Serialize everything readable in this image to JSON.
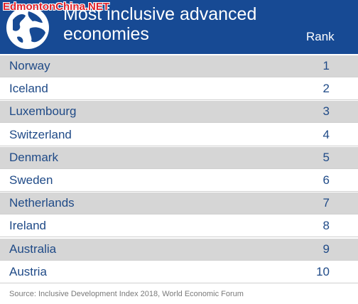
{
  "header": {
    "title": "Most inclusive advanced economies",
    "rank_label": "Rank",
    "watermark": "EdmontonChina.NET",
    "icon": "globe-icon"
  },
  "colors": {
    "header_bg": "#174a94",
    "row_shaded": "#d6d6d6",
    "text": "#1f4a87"
  },
  "rows": [
    {
      "country": "Norway",
      "rank": "1"
    },
    {
      "country": "Iceland",
      "rank": "2"
    },
    {
      "country": "Luxembourg",
      "rank": "3"
    },
    {
      "country": "Switzerland",
      "rank": "4"
    },
    {
      "country": "Denmark",
      "rank": "5"
    },
    {
      "country": "Sweden",
      "rank": "6"
    },
    {
      "country": "Netherlands",
      "rank": "7"
    },
    {
      "country": "Ireland",
      "rank": "8"
    },
    {
      "country": "Australia",
      "rank": "9"
    },
    {
      "country": "Austria",
      "rank": "10"
    }
  ],
  "source": "Source: Inclusive Development Index 2018, World Economic Forum"
}
